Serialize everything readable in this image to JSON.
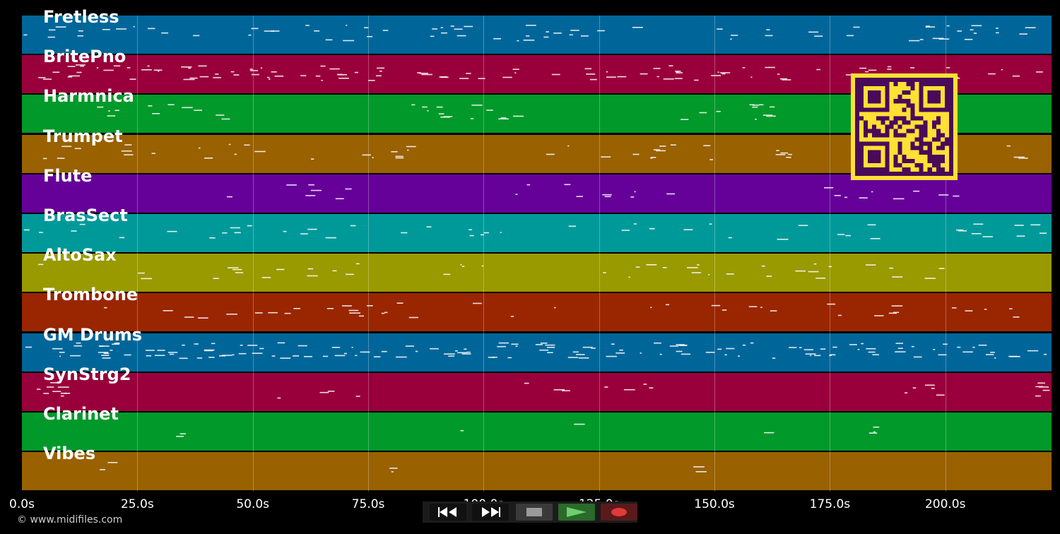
{
  "tracks": [
    {
      "name": "Fretless",
      "color": "#006699"
    },
    {
      "name": "BritePno",
      "color": "#99003b"
    },
    {
      "name": "Harmnica",
      "color": "#00992a"
    },
    {
      "name": "Trumpet",
      "color": "#996100"
    },
    {
      "name": "Flute",
      "color": "#650099"
    },
    {
      "name": "BrasSect",
      "color": "#009999"
    },
    {
      "name": "AltoSax",
      "color": "#999900"
    },
    {
      "name": "Trombone",
      "color": "#992600"
    },
    {
      "name": "GM Drums",
      "color": "#006699"
    },
    {
      "name": "SynStrg2",
      "color": "#99003b"
    },
    {
      "name": "Clarinet",
      "color": "#00992a"
    },
    {
      "name": "Vibes",
      "color": "#996100"
    }
  ],
  "time_axis": {
    "ticks": [
      "0.0s",
      "25.0s",
      "50.0s",
      "75.0s",
      "100.0s",
      "125.0s",
      "150.0s",
      "175.0s",
      "200.0s"
    ],
    "max_seconds": 223
  },
  "transport": {
    "buttons": [
      {
        "name": "rewind-button",
        "icon": "rewind-icon"
      },
      {
        "name": "fast-forward-button",
        "icon": "fast-forward-icon"
      },
      {
        "name": "stop-button",
        "icon": "stop-icon"
      },
      {
        "name": "play-button",
        "icon": "play-icon"
      },
      {
        "name": "record-button",
        "icon": "record-icon"
      }
    ],
    "colors": {
      "play": "#2a6a2a",
      "record": "#5a1a1a",
      "stop": "#3a3a3a",
      "seek": "#222222"
    }
  },
  "footer": {
    "copyright": "© www.midifiles.com"
  },
  "qr": {
    "fg": "#4a0a5a",
    "bg": "#ffe033"
  }
}
